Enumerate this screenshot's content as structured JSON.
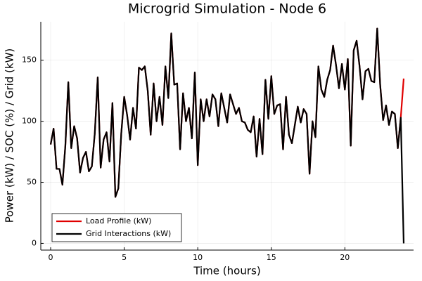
{
  "chart_data": {
    "type": "line",
    "title": "Microgrid Simulation - Node 6",
    "xlabel": "Time (hours)",
    "ylabel": "Power (kW) / SOC (%) / Grid (kW)",
    "x": [
      0,
      0.2,
      0.4,
      0.6,
      0.8,
      1,
      1.2,
      1.4,
      1.6,
      1.8,
      2,
      2.2,
      2.4,
      2.6,
      2.8,
      3,
      3.2,
      3.4,
      3.6,
      3.8,
      4,
      4.2,
      4.4,
      4.6,
      4.8,
      5,
      5.2,
      5.4,
      5.6,
      5.8,
      6,
      6.2,
      6.4,
      6.6,
      6.8,
      7,
      7.2,
      7.4,
      7.6,
      7.8,
      8,
      8.2,
      8.4,
      8.6,
      8.8,
      9,
      9.2,
      9.4,
      9.6,
      9.8,
      10,
      10.2,
      10.4,
      10.6,
      10.8,
      11,
      11.2,
      11.4,
      11.6,
      11.8,
      12,
      12.2,
      12.4,
      12.6,
      12.8,
      13,
      13.2,
      13.4,
      13.6,
      13.8,
      14,
      14.2,
      14.4,
      14.6,
      14.8,
      15,
      15.2,
      15.4,
      15.6,
      15.8,
      16,
      16.2,
      16.4,
      16.6,
      16.8,
      17,
      17.2,
      17.4,
      17.6,
      17.8,
      18,
      18.2,
      18.4,
      18.6,
      18.8,
      19,
      19.2,
      19.4,
      19.6,
      19.8,
      20,
      20.2,
      20.4,
      20.6,
      20.8,
      21,
      21.2,
      21.4,
      21.6,
      21.8,
      22,
      22.2,
      22.4,
      22.6,
      22.8,
      23,
      23.2,
      23.4,
      23.6,
      23.8,
      24
    ],
    "series": [
      {
        "name": "Load Profile (kW)",
        "color": "#e00000",
        "values": [
          81,
          94,
          61,
          61,
          48,
          80,
          132,
          78,
          96,
          86,
          58,
          70,
          75,
          59,
          63,
          90,
          136,
          62,
          85,
          91,
          67,
          115,
          38,
          45,
          90,
          120,
          105,
          85,
          111,
          94,
          144,
          142,
          145,
          125,
          89,
          131,
          100,
          120,
          97,
          145,
          119,
          172,
          130,
          131,
          77,
          123,
          100,
          111,
          86,
          140,
          64,
          118,
          100,
          118,
          104,
          122,
          118,
          96,
          123,
          111,
          99,
          122,
          114,
          106,
          111,
          100,
          99,
          93,
          91,
          104,
          71,
          102,
          73,
          134,
          102,
          137,
          106,
          113,
          114,
          77,
          120,
          89,
          82,
          97,
          112,
          99,
          110,
          106,
          57,
          100,
          87,
          145,
          126,
          120,
          134,
          142,
          162,
          146,
          127,
          147,
          126,
          151,
          80,
          158,
          166,
          145,
          118,
          141,
          143,
          133,
          132,
          176,
          130,
          101,
          113,
          97,
          108,
          106,
          78,
          103,
          135
        ]
      },
      {
        "name": "Grid Interactions (kW)",
        "color": "#000000",
        "values": [
          81,
          94,
          61,
          61,
          48,
          80,
          132,
          78,
          96,
          86,
          58,
          70,
          75,
          59,
          63,
          90,
          136,
          62,
          85,
          91,
          67,
          115,
          38,
          45,
          90,
          120,
          105,
          85,
          111,
          94,
          144,
          142,
          145,
          125,
          89,
          131,
          100,
          120,
          97,
          145,
          119,
          172,
          130,
          131,
          77,
          123,
          100,
          111,
          86,
          140,
          64,
          118,
          100,
          118,
          104,
          122,
          118,
          96,
          123,
          111,
          99,
          122,
          114,
          106,
          111,
          100,
          99,
          93,
          91,
          104,
          71,
          102,
          73,
          134,
          102,
          137,
          106,
          113,
          114,
          77,
          120,
          89,
          82,
          97,
          112,
          99,
          110,
          106,
          57,
          100,
          87,
          145,
          126,
          120,
          134,
          142,
          162,
          146,
          127,
          147,
          126,
          151,
          80,
          158,
          166,
          145,
          118,
          141,
          143,
          133,
          132,
          176,
          130,
          101,
          113,
          97,
          108,
          106,
          78,
          103,
          0
        ]
      }
    ],
    "xlim": [
      -0.67,
      24.67
    ],
    "xticks": [
      0,
      5,
      10,
      15,
      20
    ],
    "ylim": [
      -5.5,
      181.5
    ],
    "yticks": [
      0,
      50,
      100,
      150
    ],
    "grid": true,
    "legend": "bottom-left"
  }
}
